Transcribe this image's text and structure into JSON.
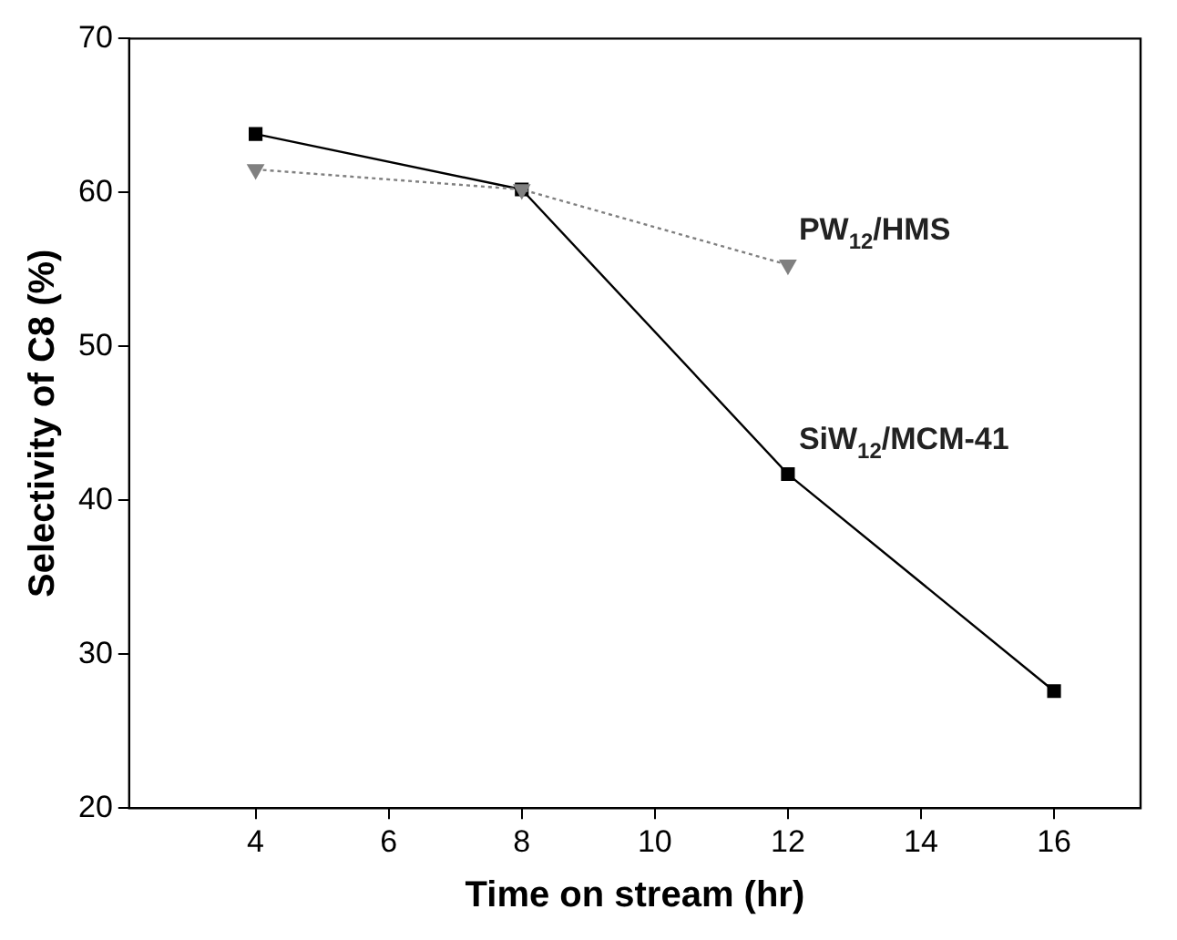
{
  "chart_data": {
    "type": "line",
    "xlabel": "Time on stream (hr)",
    "ylabel": "Selectivity of C8 (%)",
    "xlim": [
      2.1,
      17.3
    ],
    "xticks": [
      4,
      6,
      8,
      10,
      12,
      14,
      16
    ],
    "ylim": [
      20,
      70
    ],
    "yticks": [
      20,
      30,
      40,
      50,
      60,
      70
    ],
    "grid": false,
    "legend": false,
    "series": [
      {
        "name": "SiW$_{12}$/MCM-41",
        "color": "#000000",
        "x": [
          4,
          8,
          12,
          16
        ],
        "values": [
          63.8,
          60.2,
          41.7,
          27.6
        ],
        "marker": "square",
        "line_style": "solid"
      },
      {
        "name": "PW$_{12}$/HMS",
        "color": "#808080",
        "x": [
          4,
          8,
          12
        ],
        "values": [
          61.5,
          60.2,
          55.3
        ],
        "marker": "triangle",
        "line_style": "dotted"
      }
    ]
  }
}
